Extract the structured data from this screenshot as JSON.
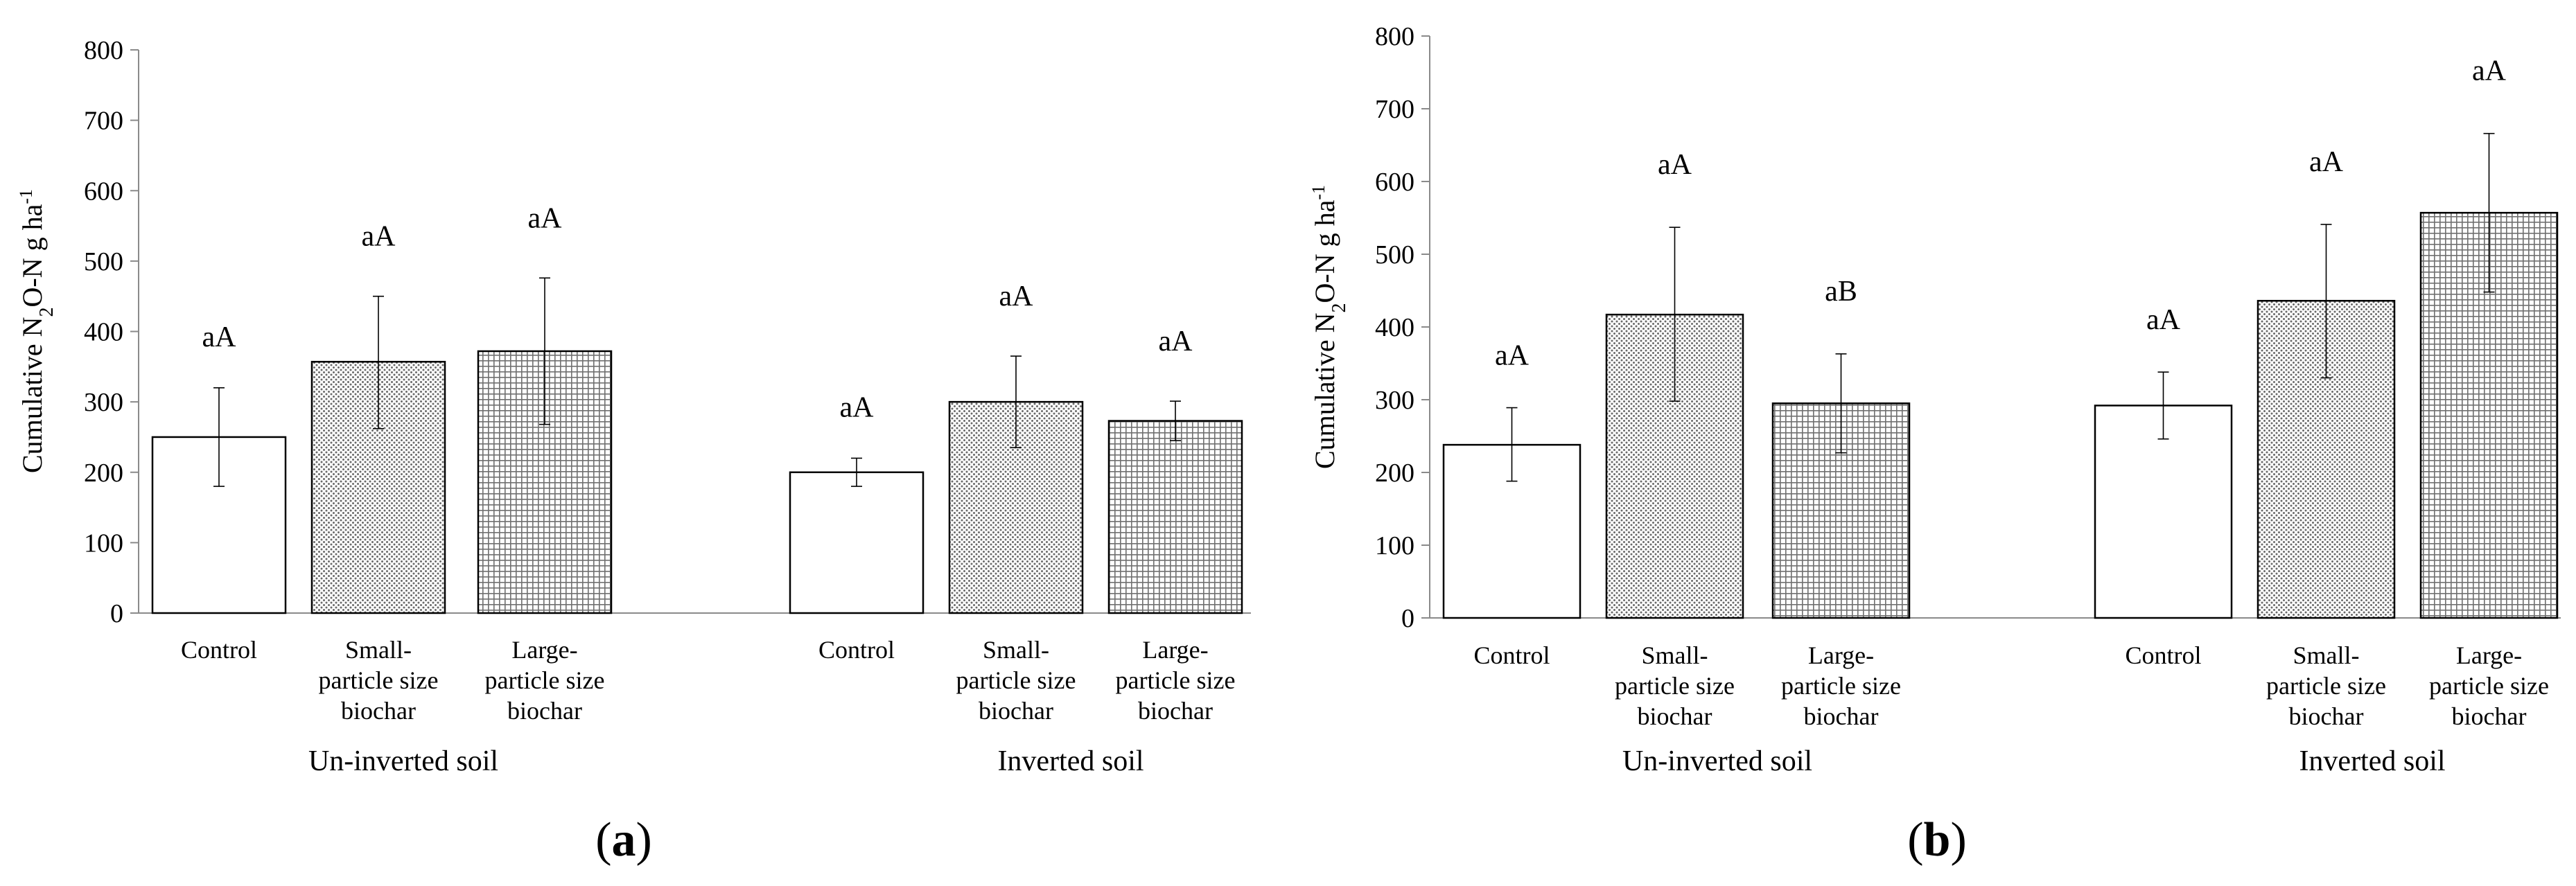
{
  "chart_data": [
    {
      "type": "bar",
      "panel_label": "a",
      "ylabel": "Cumulative N2O-N g ha-1",
      "ylim": [
        0,
        800
      ],
      "yticks": [
        "0",
        "100",
        "200",
        "300",
        "400",
        "500",
        "600",
        "700",
        "800"
      ],
      "groups": [
        {
          "name": "Un-inverted soil",
          "bars": [
            {
              "category": "Control",
              "category_lines": [
                "Control"
              ],
              "value": 250,
              "err_low": 180,
              "err_high": 320,
              "label": "aA",
              "pattern": "none"
            },
            {
              "category": "Small-particle size biochar",
              "category_lines": [
                "Small-",
                "particle size",
                "biochar"
              ],
              "value": 357,
              "err_low": 262,
              "err_high": 450,
              "label": "aA",
              "pattern": "dots"
            },
            {
              "category": "Large-particle size biochar",
              "category_lines": [
                "Large-",
                "particle size",
                "biochar"
              ],
              "value": 372,
              "err_low": 268,
              "err_high": 476,
              "label": "aA",
              "pattern": "grid"
            }
          ]
        },
        {
          "name": "Inverted soil",
          "bars": [
            {
              "category": "Control",
              "category_lines": [
                "Control"
              ],
              "value": 200,
              "err_low": 180,
              "err_high": 220,
              "label": "aA",
              "pattern": "none"
            },
            {
              "category": "Small-particle size biochar",
              "category_lines": [
                "Small-",
                "particle size",
                "biochar"
              ],
              "value": 300,
              "err_low": 235,
              "err_high": 365,
              "label": "aA",
              "pattern": "dots"
            },
            {
              "category": "Large-particle size biochar",
              "category_lines": [
                "Large-",
                "particle size",
                "biochar"
              ],
              "value": 273,
              "err_low": 245,
              "err_high": 301,
              "label": "aA",
              "pattern": "grid"
            }
          ]
        }
      ]
    },
    {
      "type": "bar",
      "panel_label": "b",
      "ylabel": "Cumulative N2O-N g ha-1",
      "ylim": [
        0,
        800
      ],
      "yticks": [
        "0",
        "100",
        "200",
        "300",
        "400",
        "500",
        "600",
        "700",
        "800"
      ],
      "groups": [
        {
          "name": "Un-inverted soil",
          "bars": [
            {
              "category": "Control",
              "category_lines": [
                "Control"
              ],
              "value": 238,
              "err_low": 188,
              "err_high": 289,
              "label": "aA",
              "pattern": "none"
            },
            {
              "category": "Small-particle size biochar",
              "category_lines": [
                "Small-",
                "particle size",
                "biochar"
              ],
              "value": 417,
              "err_low": 298,
              "err_high": 537,
              "label": "aA",
              "pattern": "dots"
            },
            {
              "category": "Large-particle size biochar",
              "category_lines": [
                "Large-",
                "particle size",
                "biochar"
              ],
              "value": 295,
              "err_low": 227,
              "err_high": 363,
              "label": "aB",
              "pattern": "grid"
            }
          ]
        },
        {
          "name": "Inverted soil",
          "bars": [
            {
              "category": "Control",
              "category_lines": [
                "Control"
              ],
              "value": 292,
              "err_low": 246,
              "err_high": 338,
              "label": "aA",
              "pattern": "none"
            },
            {
              "category": "Small-particle size biochar",
              "category_lines": [
                "Small-",
                "particle size",
                "biochar"
              ],
              "value": 436,
              "err_low": 330,
              "err_high": 541,
              "label": "aA",
              "pattern": "dots"
            },
            {
              "category": "Large-particle size biochar",
              "category_lines": [
                "Large-",
                "particle size",
                "biochar"
              ],
              "value": 557,
              "err_low": 448,
              "err_high": 666,
              "label": "aA",
              "pattern": "grid"
            }
          ]
        }
      ]
    }
  ]
}
